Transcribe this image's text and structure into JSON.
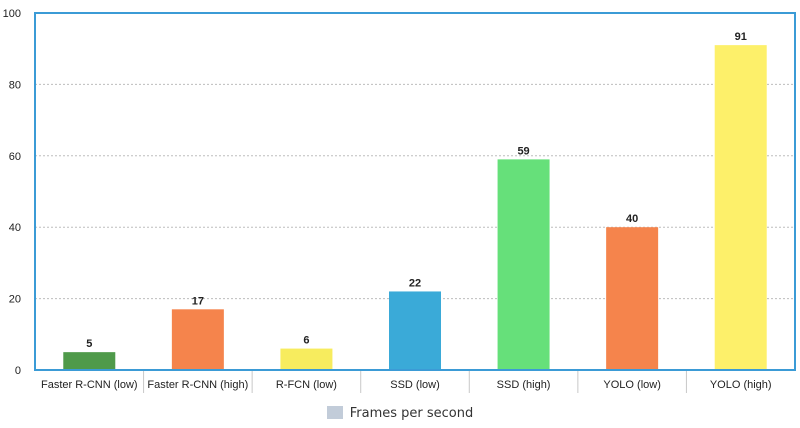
{
  "chart_data": {
    "type": "bar",
    "categories": [
      "Faster R-CNN (low)",
      "Faster R-CNN (high)",
      "R-FCN (low)",
      "SSD (low)",
      "SSD (high)",
      "YOLO (low)",
      "YOLO (high)"
    ],
    "series": [
      {
        "name": "Frames per second",
        "values": [
          5,
          17,
          6,
          22,
          59,
          40,
          91
        ]
      }
    ],
    "bar_colors": [
      "#4f9a4a",
      "#f5844c",
      "#f7ec5e",
      "#3aaad8",
      "#66e07a",
      "#f5844c",
      "#fdf06a"
    ],
    "ylim": [
      0,
      100
    ],
    "yticks": [
      0,
      20,
      40,
      60,
      80,
      100
    ],
    "grid": true,
    "data_labels": true,
    "legend_position": "bottom",
    "legend_color": "#c2ccd9",
    "frame_color": "#3b9bd6",
    "xlabel": "",
    "ylabel": "",
    "title": ""
  }
}
